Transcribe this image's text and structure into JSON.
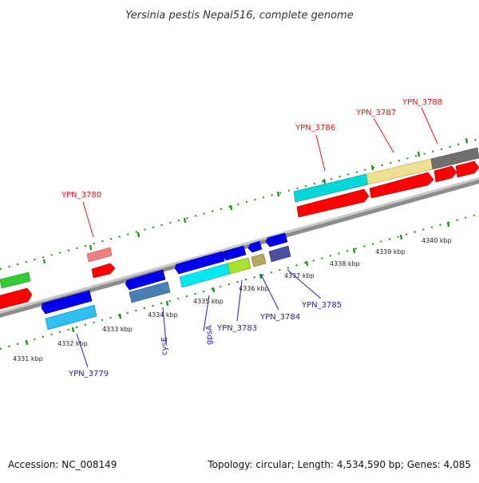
{
  "title": "Yersinia pestis Nepal516, complete genome",
  "footer": {
    "accession": "Accession: NC_008149",
    "topology": "Topology: circular; Length: 4,534,590 bp; Genes: 4,085"
  },
  "kbp_labels_lower": [
    "4331 kbp",
    "4332 kbp",
    "4333 kbp",
    "4334 kbp",
    "4335 kbp",
    "4336 kbp",
    "4337 kbp",
    "4338 kbp",
    "4339 kbp",
    "4340 kbp"
  ],
  "gene_labels": [
    {
      "text": "YPN_3780",
      "color": "#e31a1c"
    },
    {
      "text": "YPN_3786",
      "color": "#e31a1c"
    },
    {
      "text": "YPN_3787",
      "color": "#e31a1c"
    },
    {
      "text": "YPN_3788",
      "color": "#e31a1c"
    },
    {
      "text": "YPN_3779",
      "color": "#1f1fb4"
    },
    {
      "text": "cysE",
      "color": "#1f1fb4"
    },
    {
      "text": "gpsA",
      "color": "#1f1fb4"
    },
    {
      "text": "YPN_3783",
      "color": "#1f1fb4"
    },
    {
      "text": "YPN_3784",
      "color": "#1f1fb4"
    },
    {
      "text": "YPN_3785",
      "color": "#1f1fb4"
    }
  ],
  "colors": {
    "backbone": "#8c8c8c",
    "tick": "#1a8a1a",
    "forward_cds": "#ff0000",
    "reverse_cds": "#0000ee",
    "cyan": "#00d8d8",
    "light_blue": "#2ec0f0",
    "steel_blue": "#4a7fb5",
    "green": "#33cc33",
    "khaki": "#eee090",
    "gray": "#707070",
    "pink": "#f08080",
    "lime": "#a6e22e",
    "olive": "#b8a860",
    "slate": "#4b4fa0"
  }
}
